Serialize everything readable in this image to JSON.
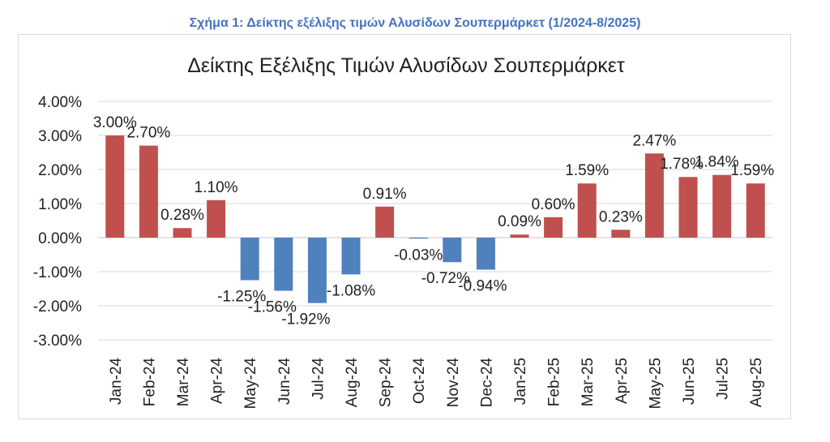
{
  "caption": "Σχήμα 1: Δείκτης εξέλιξης τιμών Αλυσίδων Σουπερμάρκετ (1/2024-8/2025)",
  "colors": {
    "caption": "#4472c4",
    "positive": "#c0504d",
    "negative": "#4f81bd",
    "grid": "#d9d9d9"
  },
  "chart_data": {
    "type": "bar",
    "title": "Δείκτης Εξέλιξης Τιμών Αλυσίδων Σουπερμάρκετ",
    "xlabel": "",
    "ylabel": "",
    "ylim": [
      -3,
      4
    ],
    "yticks": [
      4,
      3,
      2,
      1,
      0,
      -1,
      -2,
      -3
    ],
    "ytick_labels": [
      "4.00%",
      "3.00%",
      "2.00%",
      "1.00%",
      "0.00%",
      "-1.00%",
      "-2.00%",
      "-3.00%"
    ],
    "grid": true,
    "legend": "none",
    "categories": [
      "Jan-24",
      "Feb-24",
      "Mar-24",
      "Apr-24",
      "May-24",
      "Jun-24",
      "Jul-24",
      "Aug-24",
      "Sep-24",
      "Oct-24",
      "Nov-24",
      "Dec-24",
      "Jan-25",
      "Feb-25",
      "Mar-25",
      "Apr-25",
      "May-25",
      "Jun-25",
      "Jul-25",
      "Aug-25"
    ],
    "values": [
      3.0,
      2.7,
      0.28,
      1.1,
      -1.25,
      -1.56,
      -1.92,
      -1.08,
      0.91,
      -0.03,
      -0.72,
      -0.94,
      0.09,
      0.6,
      1.59,
      0.23,
      2.47,
      1.78,
      1.84,
      1.59
    ],
    "data_labels": [
      "3.00%",
      "2.70%",
      "0.28%",
      "1.10%",
      "-1.25%",
      "-1.56%",
      "-1.92%",
      "-1.08%",
      "0.91%",
      "-0.03%",
      "-0.72%",
      "-0.94%",
      "0.09%",
      "0.60%",
      "1.59%",
      "0.23%",
      "2.47%",
      "1.78%",
      "1.84%",
      "1.59%"
    ]
  }
}
